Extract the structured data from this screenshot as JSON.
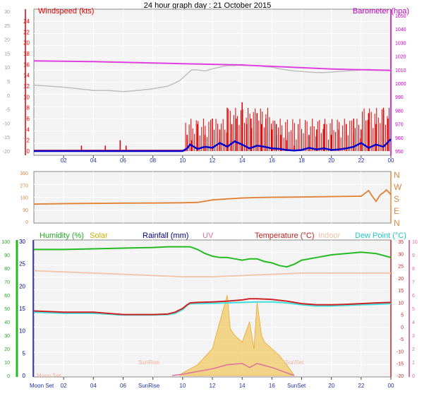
{
  "title": "24 hour graph day : 21 October 2015",
  "colors": {
    "wind": "#e00000",
    "windAvg": "#0000cc",
    "baro": "#e040e0",
    "temp": "#cc2222",
    "dew": "#40e0e0",
    "hum": "#22bb22",
    "indoor": "#f0c8b0",
    "windir": "#e08840",
    "solar": "#f0c040",
    "uv": "#e070a0",
    "rain": "#2222aa",
    "gust": "#c0c0c0"
  },
  "x_tick_labels": [
    "02",
    "04",
    "06",
    "08",
    "10",
    "12",
    "14",
    "16",
    "18",
    "20",
    "22",
    "00"
  ],
  "chart_data": [
    {
      "type": "line",
      "name": "wind-baro",
      "left_axis_label": "Windspeed (kts)",
      "right_axis_label": "Barometer (hpa)",
      "outer_left_ticks": [
        "30",
        "25",
        "20",
        "15",
        "10",
        "5",
        "0",
        "-5",
        "-10",
        "-15",
        "-20"
      ],
      "left_ticks": [
        "24",
        "22",
        "20",
        "18",
        "16",
        "14",
        "12",
        "10",
        "8",
        "6",
        "4",
        "2",
        "0"
      ],
      "right_ticks": [
        "1050",
        "1040",
        "1030",
        "1020",
        "1010",
        "1000",
        "990",
        "980",
        "970",
        "960",
        "950"
      ],
      "x_hours": [
        0,
        24
      ],
      "series": [
        {
          "key": "baro",
          "x": [
            0,
            2,
            4,
            6,
            8,
            10,
            12,
            14,
            16,
            18,
            20,
            22,
            24
          ],
          "y": [
            1016.5,
            1016.3,
            1016,
            1015.5,
            1015,
            1014.5,
            1014,
            1013.5,
            1012.5,
            1011.5,
            1010.5,
            1010,
            1009.5
          ]
        },
        {
          "key": "gust",
          "x": [
            0,
            1,
            2,
            3,
            4,
            5,
            6,
            7,
            8,
            9,
            9.8,
            10.2,
            10.6,
            11,
            11.5,
            12,
            12.5,
            13,
            13.5,
            14,
            14.5,
            15,
            15.5,
            16,
            16.5,
            17,
            17.5,
            18,
            18.5,
            19,
            19.5,
            20,
            20.5,
            21,
            21.5,
            22,
            22.5,
            23,
            23.5,
            24
          ],
          "y": [
            12.2,
            12,
            11.8,
            11.5,
            11.2,
            11.2,
            11,
            11.2,
            11.5,
            12,
            13,
            14,
            15,
            15,
            14.8,
            15.2,
            15.5,
            15.8,
            15.8,
            16,
            15.8,
            15.8,
            15.6,
            15.5,
            15.2,
            15,
            14.8,
            14.7,
            14.6,
            14.5,
            14.5,
            14.6,
            14.7,
            14.8,
            14.9,
            15,
            15.1,
            15,
            15,
            15
          ]
        },
        {
          "key": "windAvg",
          "x": [
            0,
            10,
            10.3,
            10.5,
            11,
            11.5,
            12,
            12.5,
            13,
            13.5,
            14,
            14.5,
            15,
            15.5,
            16,
            16.5,
            17,
            17.5,
            18,
            18.5,
            19,
            19.5,
            20,
            20.5,
            21,
            21.5,
            22,
            22.5,
            23,
            23.5,
            24
          ],
          "y": [
            0,
            0,
            0.5,
            1.2,
            0.4,
            0.8,
            0.6,
            1.5,
            0.8,
            1.8,
            1.2,
            0.5,
            1,
            0.8,
            0.5,
            0.4,
            0.2,
            0.1,
            0.2,
            0.6,
            0.3,
            0.5,
            0.2,
            0.3,
            0.5,
            0.8,
            1.5,
            0.6,
            1.2,
            0.8,
            2.2
          ]
        }
      ],
      "wind_bars_hours": [
        3.2,
        4.8,
        5.8,
        6.2,
        10.3,
        10.6,
        11,
        11.5,
        12,
        12.5,
        13,
        13.3,
        13.6,
        14,
        14.3,
        14.6,
        15,
        15.3,
        15.6,
        16,
        16.3,
        16.6,
        17,
        17.5,
        18.5,
        19,
        19.5,
        20,
        20.5,
        21,
        21.5,
        22,
        22.5,
        23,
        23.5,
        23.8
      ],
      "wind_bars_values": [
        1,
        1,
        2,
        1,
        3,
        2,
        5,
        3,
        6,
        4,
        8,
        5,
        6,
        9,
        5,
        6,
        7,
        5,
        6,
        4,
        5,
        3,
        2,
        1,
        3,
        4,
        5,
        3,
        4,
        5,
        6,
        4,
        7,
        5,
        8,
        6
      ],
      "ylim_left": [
        0,
        24
      ],
      "ylim_right": [
        950,
        1050
      ]
    },
    {
      "type": "line",
      "name": "wind-direction",
      "left_ticks": [
        "360",
        "270",
        "180",
        "90",
        "0"
      ],
      "right_labels": [
        "N",
        "W",
        "S",
        "E",
        "N"
      ],
      "series": [
        {
          "key": "windir",
          "x": [
            0,
            2,
            4,
            6,
            8,
            10,
            11,
            12,
            13,
            14,
            15,
            16,
            18,
            20,
            22,
            22.5,
            22.7,
            23,
            23.3,
            23.5,
            23.7,
            24
          ],
          "y": [
            130,
            133,
            135,
            137,
            138,
            140,
            142,
            160,
            168,
            175,
            178,
            180,
            182,
            185,
            188,
            230,
            195,
            150,
            200,
            215,
            235,
            200
          ]
        }
      ],
      "ylim": [
        0,
        360
      ]
    },
    {
      "type": "line",
      "name": "temp-hum",
      "humidity_label": "Humidity (%)",
      "solar_label": "Solar",
      "rainfall_label": "Rainfall (mm)",
      "uv_label": "UV",
      "temperature_label": "Temperature (°C)",
      "indoor_label": "Indoor",
      "dewpoint_label": "Dew Point (°C)",
      "hum_ticks": [
        "100",
        "90",
        "80",
        "70",
        "60",
        "50",
        "40",
        "30",
        "20",
        "10",
        "0"
      ],
      "rain_ticks": [
        "30",
        "25",
        "20",
        "15",
        "10",
        "5",
        "0"
      ],
      "uv_ticks": [
        "10",
        "9",
        "8",
        "7",
        "6",
        "5",
        "4",
        "3",
        "2",
        "1",
        "0"
      ],
      "temp_ticks": [
        "35",
        "30",
        "25",
        "20",
        "15",
        "10",
        "5",
        "0",
        "-5",
        "-10",
        "-15",
        "-20"
      ],
      "annotations": {
        "moon_set": "Moon Set",
        "moon_set_faint": "Moon Set",
        "sunrise": "SunRise",
        "sunset": "SunSet"
      },
      "series": [
        {
          "key": "hum",
          "x": [
            0,
            2,
            4,
            6,
            8,
            9,
            10,
            10.5,
            11,
            11.5,
            12,
            12.5,
            13,
            13.5,
            14,
            14.5,
            15,
            15.5,
            16,
            16.5,
            17,
            17.5,
            18,
            19,
            20,
            21,
            22,
            23,
            24
          ],
          "y": [
            94,
            94,
            94.5,
            95,
            95.5,
            96,
            96,
            96,
            94,
            91,
            89,
            88,
            88,
            87,
            86,
            87,
            87,
            85,
            84,
            82,
            81,
            83,
            86,
            88,
            90,
            91,
            92,
            91,
            88
          ]
        },
        {
          "key": "indoor",
          "x": [
            0,
            2,
            4,
            6,
            8,
            10,
            12,
            14,
            16,
            18,
            20,
            22,
            24
          ],
          "y": [
            23,
            22.5,
            22,
            21.5,
            21,
            20.5,
            20.5,
            21,
            21.5,
            22,
            22,
            22,
            22
          ]
        },
        {
          "key": "temp",
          "x": [
            0,
            2,
            4,
            6,
            8,
            9,
            9.5,
            10,
            10.3,
            10.5,
            11,
            12,
            13,
            14,
            14.5,
            15,
            16,
            17,
            18,
            19,
            20,
            21,
            22,
            23,
            24
          ],
          "y": [
            6.5,
            6,
            6,
            5,
            5,
            5.2,
            6,
            7.5,
            9,
            9.8,
            10,
            10.2,
            10.5,
            11,
            11.5,
            11.5,
            11.2,
            10.5,
            9.5,
            9,
            9,
            9.2,
            9.5,
            9.8,
            10
          ]
        },
        {
          "key": "dew",
          "x": [
            0,
            2,
            4,
            6,
            8,
            9,
            9.5,
            10,
            10.3,
            10.5,
            11,
            12,
            13,
            14,
            15,
            16,
            17,
            18,
            19,
            20,
            21,
            22,
            23,
            24
          ],
          "y": [
            6,
            5.5,
            5.5,
            4.8,
            4.8,
            5,
            5.5,
            7,
            8.8,
            9.4,
            9.5,
            9.6,
            9.8,
            10,
            10.2,
            10.2,
            9.8,
            9,
            8.5,
            8.5,
            8.8,
            9,
            9.2,
            9.5
          ]
        },
        {
          "key": "uv",
          "x": [
            9.3,
            10,
            11,
            12,
            13,
            14,
            14.5,
            15,
            16,
            17,
            17.5
          ],
          "y": [
            0,
            0.1,
            0.3,
            0.5,
            0.8,
            0.9,
            0.6,
            0.9,
            0.6,
            0.2,
            0
          ]
        }
      ],
      "solar_area": {
        "x": [
          9.8,
          10,
          11,
          12,
          12.5,
          13,
          13.2,
          13.5,
          14,
          14.5,
          14.8,
          15,
          15.3,
          15.5,
          16,
          16.5,
          17,
          17.5
        ],
        "y": [
          0,
          0.2,
          0.8,
          2,
          4,
          6,
          3.5,
          3,
          2.5,
          4,
          2,
          5.5,
          3,
          2.5,
          2,
          1.5,
          0.8,
          0
        ]
      },
      "solar_label_text_y": [
        0,
        2,
        4,
        6,
        8,
        10
      ],
      "ylim_temp": [
        -20,
        35
      ],
      "ylim_hum": [
        0,
        100
      ]
    }
  ]
}
